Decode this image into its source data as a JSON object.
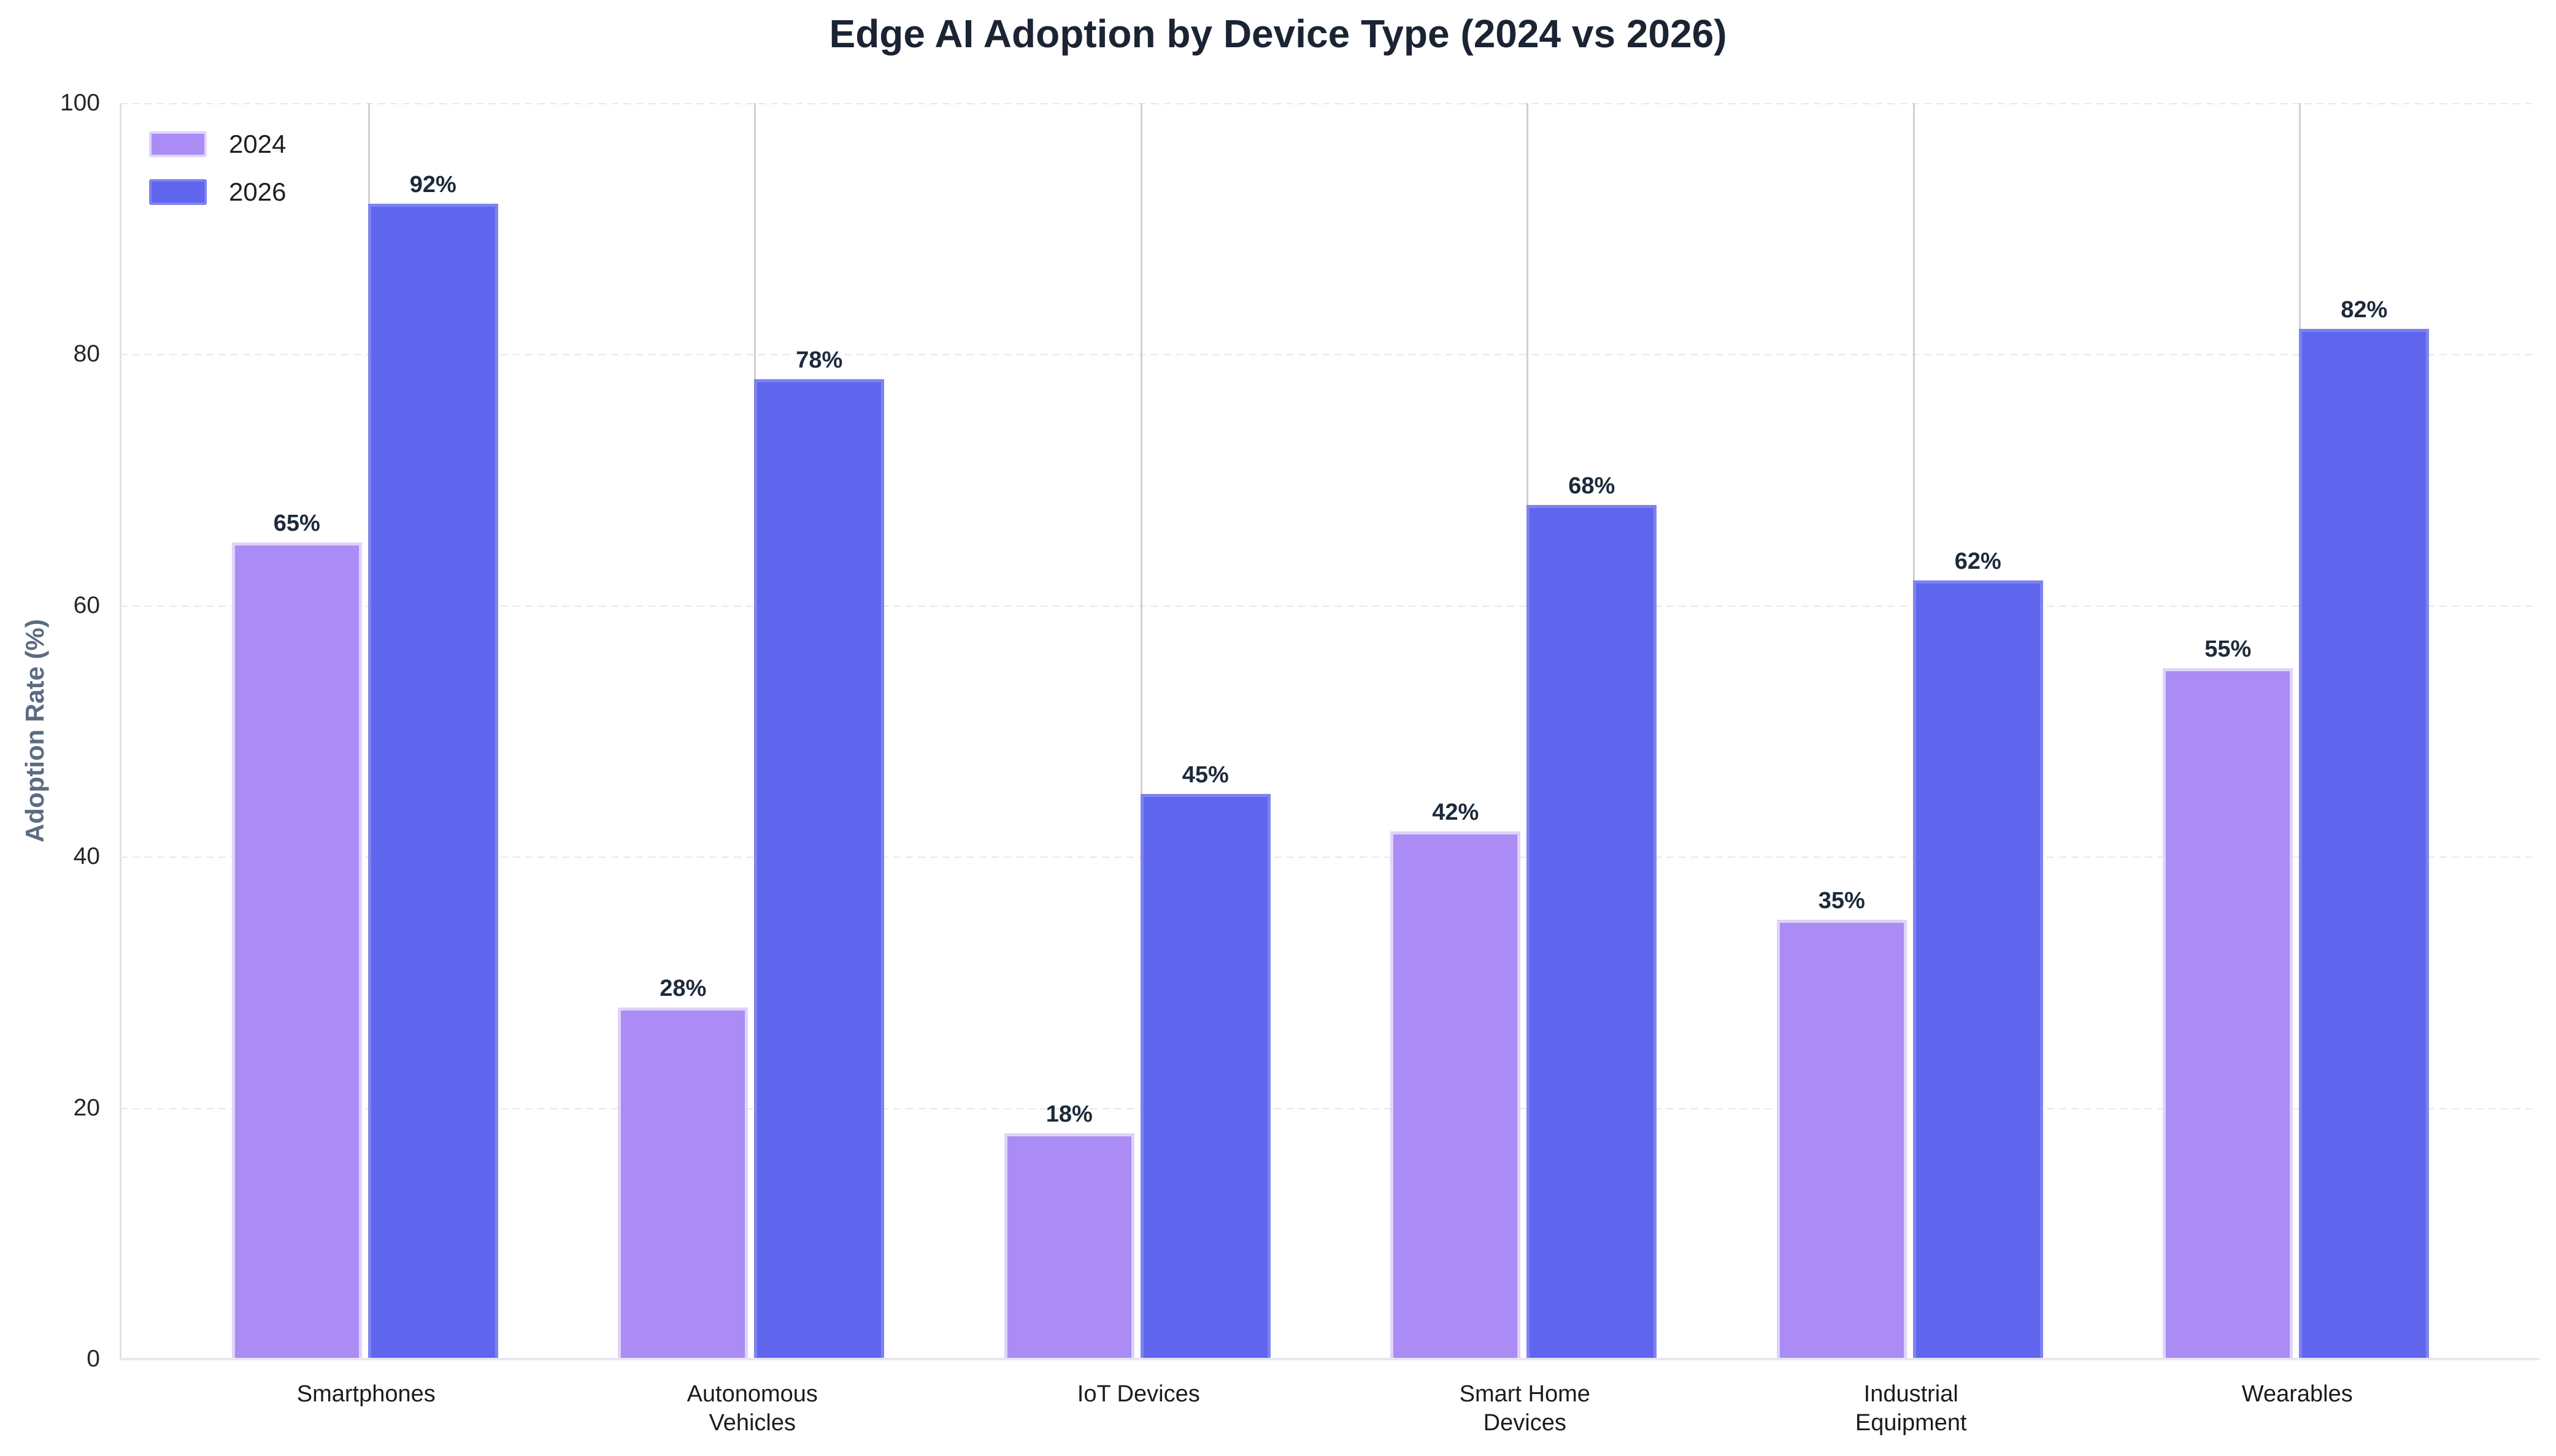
{
  "title": "Edge AI Adoption by Device Type (2024 vs 2026)",
  "chart_data": {
    "type": "bar",
    "title": "Edge AI Adoption by Device Type (2024 vs 2026)",
    "ylabel": "Adoption Rate (%)",
    "ylim": [
      0,
      100
    ],
    "yticks": [
      0,
      20,
      40,
      60,
      80,
      100
    ],
    "grid": "horizontal dashed gridlines at each y tick; light vertical divider line at each category center behind bars",
    "legend_position": "top-left inside plot",
    "value_suffix": "%",
    "categories": [
      [
        "Smartphones"
      ],
      [
        "Autonomous",
        "Vehicles"
      ],
      [
        "IoT Devices"
      ],
      [
        "Smart Home",
        "Devices"
      ],
      [
        "Industrial",
        "Equipment"
      ],
      [
        "Wearables"
      ]
    ],
    "series": [
      {
        "name": "2024",
        "color": "#ab8bf4",
        "edge_color": "#ded4f8",
        "values": [
          65,
          28,
          18,
          42,
          35,
          55
        ]
      },
      {
        "name": "2026",
        "color": "#6065ee",
        "edge_color": "#7e82f1",
        "values": [
          92,
          78,
          45,
          68,
          62,
          82
        ]
      }
    ]
  },
  "colors": {
    "title": "#1b2433",
    "y_axis_title": "#5c6b80",
    "tick_labels": "#262626",
    "value_labels": "#1d2a3a",
    "gridline": "#e8e8ea",
    "category_divider": "#d0d0d0",
    "left_spine": "#e0e0e6",
    "bottom_spine": "#e7e6f1",
    "background": "#ffffff"
  }
}
